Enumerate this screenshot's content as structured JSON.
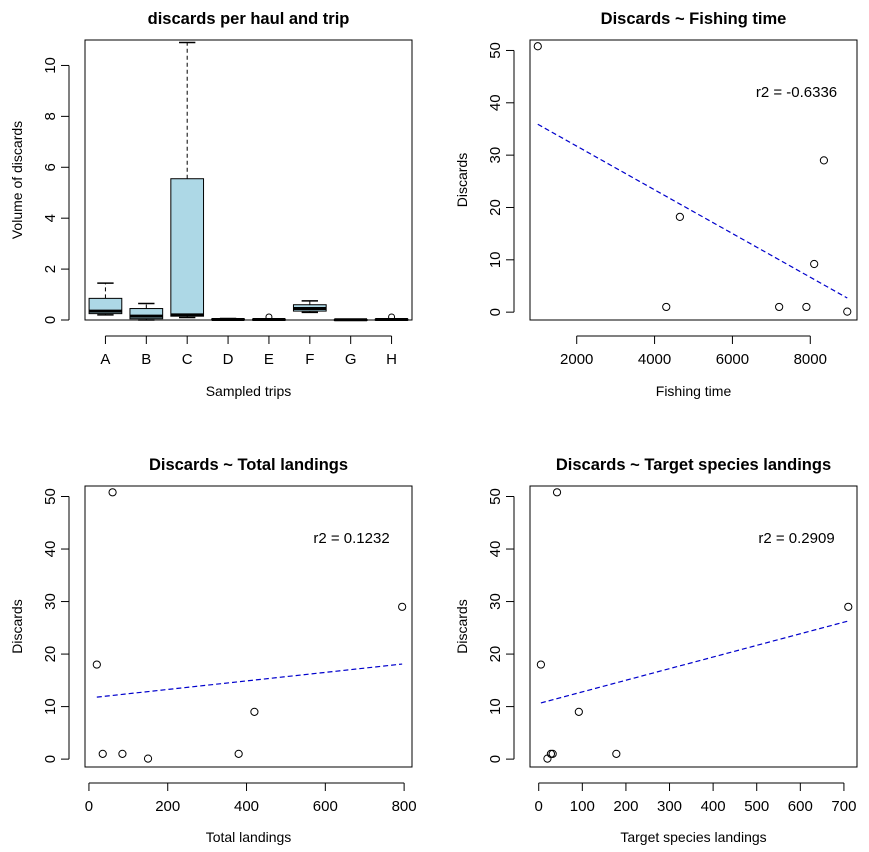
{
  "chart_data": [
    {
      "type": "box",
      "title": "discards per haul and trip",
      "xlabel": "Sampled trips",
      "ylabel": "Volume of discards",
      "ylim": [
        0,
        11
      ],
      "yticks": [
        0,
        2,
        4,
        6,
        8,
        10
      ],
      "categories": [
        "A",
        "B",
        "C",
        "D",
        "E",
        "F",
        "G",
        "H"
      ],
      "fill": "#add8e6",
      "boxes": [
        {
          "name": "A",
          "lower_whisker": 0.2,
          "q1": 0.25,
          "median": 0.35,
          "q3": 0.85,
          "upper_whisker": 1.45,
          "outliers": []
        },
        {
          "name": "B",
          "lower_whisker": 0.0,
          "q1": 0.05,
          "median": 0.15,
          "q3": 0.45,
          "upper_whisker": 0.65,
          "outliers": []
        },
        {
          "name": "C",
          "lower_whisker": 0.1,
          "q1": 0.15,
          "median": 0.2,
          "q3": 5.55,
          "upper_whisker": 10.9,
          "outliers": []
        },
        {
          "name": "D",
          "lower_whisker": 0.0,
          "q1": 0.0,
          "median": 0.02,
          "q3": 0.04,
          "upper_whisker": 0.06,
          "outliers": []
        },
        {
          "name": "E",
          "lower_whisker": 0.0,
          "q1": 0.0,
          "median": 0.02,
          "q3": 0.03,
          "upper_whisker": 0.03,
          "outliers": [
            0.12
          ]
        },
        {
          "name": "F",
          "lower_whisker": 0.3,
          "q1": 0.35,
          "median": 0.45,
          "q3": 0.6,
          "upper_whisker": 0.75,
          "outliers": []
        },
        {
          "name": "G",
          "lower_whisker": 0.0,
          "q1": 0.0,
          "median": 0.01,
          "q3": 0.02,
          "upper_whisker": 0.02,
          "outliers": []
        },
        {
          "name": "H",
          "lower_whisker": 0.0,
          "q1": 0.0,
          "median": 0.02,
          "q3": 0.03,
          "upper_whisker": 0.03,
          "outliers": [
            0.12
          ]
        }
      ]
    },
    {
      "type": "scatter",
      "title": "Discards ~ Fishing time",
      "xlabel": "Fishing time",
      "ylabel": "Discards",
      "xlim": [
        800,
        9200
      ],
      "ylim": [
        -1.5,
        52
      ],
      "xticks": [
        2000,
        4000,
        6000,
        8000
      ],
      "yticks": [
        0,
        10,
        20,
        30,
        40,
        50
      ],
      "annotation": "r2 = -0.6336",
      "points": [
        [
          1000,
          50.8
        ],
        [
          4300,
          1.0
        ],
        [
          4650,
          18.2
        ],
        [
          7200,
          1.0
        ],
        [
          7900,
          1.0
        ],
        [
          8100,
          9.2
        ],
        [
          8350,
          29.0
        ],
        [
          8950,
          0.1
        ]
      ],
      "fit": {
        "x": [
          1000,
          8950
        ],
        "y": [
          35.9,
          2.7
        ],
        "color": "#0000cc"
      }
    },
    {
      "type": "scatter",
      "title": "Discards ~ Total landings",
      "xlabel": "Total landings",
      "ylabel": "Discards",
      "xlim": [
        -10,
        820
      ],
      "ylim": [
        -1.5,
        52
      ],
      "xticks": [
        0,
        200,
        400,
        600,
        800
      ],
      "yticks": [
        0,
        10,
        20,
        30,
        40,
        50
      ],
      "annotation": "r2 = 0.1232",
      "points": [
        [
          20,
          18.0
        ],
        [
          35,
          1.0
        ],
        [
          60,
          50.8
        ],
        [
          85,
          1.0
        ],
        [
          150,
          0.1
        ],
        [
          380,
          1.0
        ],
        [
          420,
          9.0
        ],
        [
          795,
          29.0
        ]
      ],
      "fit": {
        "x": [
          20,
          795
        ],
        "y": [
          11.8,
          18.1
        ],
        "color": "#0000cc"
      }
    },
    {
      "type": "scatter",
      "title": "Discards ~ Target species landings",
      "xlabel": "Target species landings",
      "ylabel": "Discards",
      "xlim": [
        -20,
        730
      ],
      "ylim": [
        -1.5,
        52
      ],
      "xticks": [
        0,
        100,
        200,
        300,
        400,
        500,
        600,
        700
      ],
      "yticks": [
        0,
        10,
        20,
        30,
        40,
        50
      ],
      "annotation": "r2 = 0.2909",
      "points": [
        [
          5,
          18.0
        ],
        [
          20,
          0.1
        ],
        [
          28,
          1.0
        ],
        [
          32,
          1.0
        ],
        [
          42,
          50.8
        ],
        [
          92,
          9.0
        ],
        [
          178,
          1.0
        ],
        [
          710,
          29.0
        ]
      ],
      "fit": {
        "x": [
          5,
          710
        ],
        "y": [
          10.7,
          26.3
        ],
        "color": "#0000cc"
      }
    }
  ]
}
